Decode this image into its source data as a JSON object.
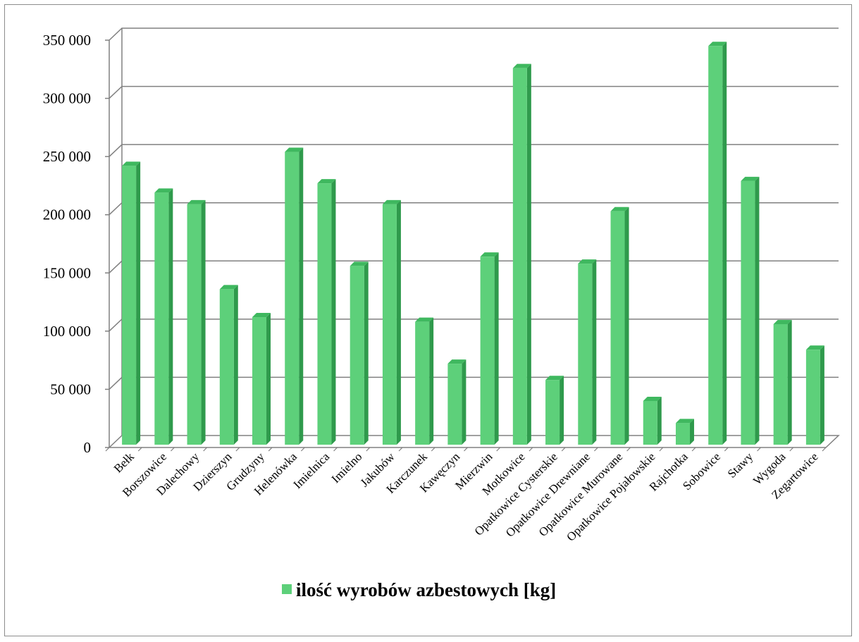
{
  "chart_data": {
    "type": "bar",
    "style": "3d-clustered-column",
    "categories": [
      "Bełk",
      "Borszowice",
      "Dalechowy",
      "Dzierszyn",
      "Grudzyny",
      "Helenówka",
      "Imielnica",
      "Imielno",
      "Jakubów",
      "Karczunek",
      "Kawęczyn",
      "Mierzwin",
      "Motkowice",
      "Opatkowice Cysterskie",
      "Opatkowice Drewniane",
      "Opatkowice Murowane",
      "Opatkowice Pojałowskie",
      "Rajchotka",
      "Sobowice",
      "Stawy",
      "Wygoda",
      "Zegartowice"
    ],
    "series": [
      {
        "name": "ilość wyrobów azbestowych [kg]",
        "color": "#5dd07a",
        "values": [
          242000,
          219000,
          209000,
          136000,
          112000,
          254000,
          227000,
          156000,
          209000,
          108000,
          72000,
          164000,
          326000,
          58000,
          158000,
          203000,
          40000,
          21000,
          345000,
          229000,
          106000,
          84000
        ]
      }
    ],
    "ylim": [
      0,
      350000
    ],
    "y_ticks": [
      0,
      50000,
      100000,
      150000,
      200000,
      250000,
      300000,
      350000
    ],
    "y_tick_labels": [
      "0",
      "50 000",
      "100 000",
      "150 000",
      "200 000",
      "250 000",
      "300 000",
      "350 000"
    ],
    "grid": true,
    "legend_position": "bottom",
    "title": "",
    "xlabel": "",
    "ylabel": ""
  }
}
